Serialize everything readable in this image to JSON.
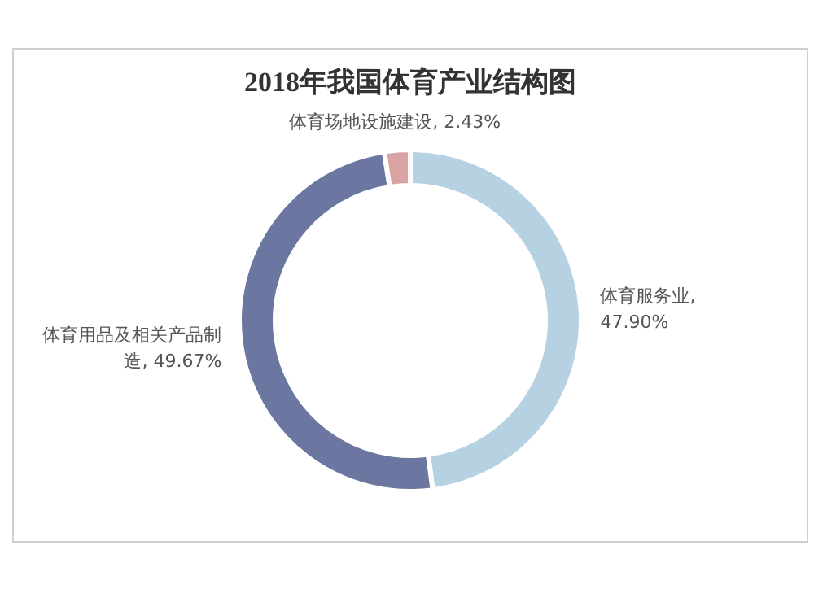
{
  "chart_data": {
    "type": "donut",
    "title": "2018年我国体育产业结构图",
    "categories": [
      "体育服务业",
      "体育用品及相关产品制造",
      "体育场地设施建设"
    ],
    "values": [
      47.9,
      49.67,
      2.43
    ],
    "colors": [
      "#b6d2e2",
      "#6b77a0",
      "#d9a3a3"
    ],
    "value_labels": [
      ", 47.90%",
      ", 49.67%",
      ", 2.43%"
    ]
  }
}
